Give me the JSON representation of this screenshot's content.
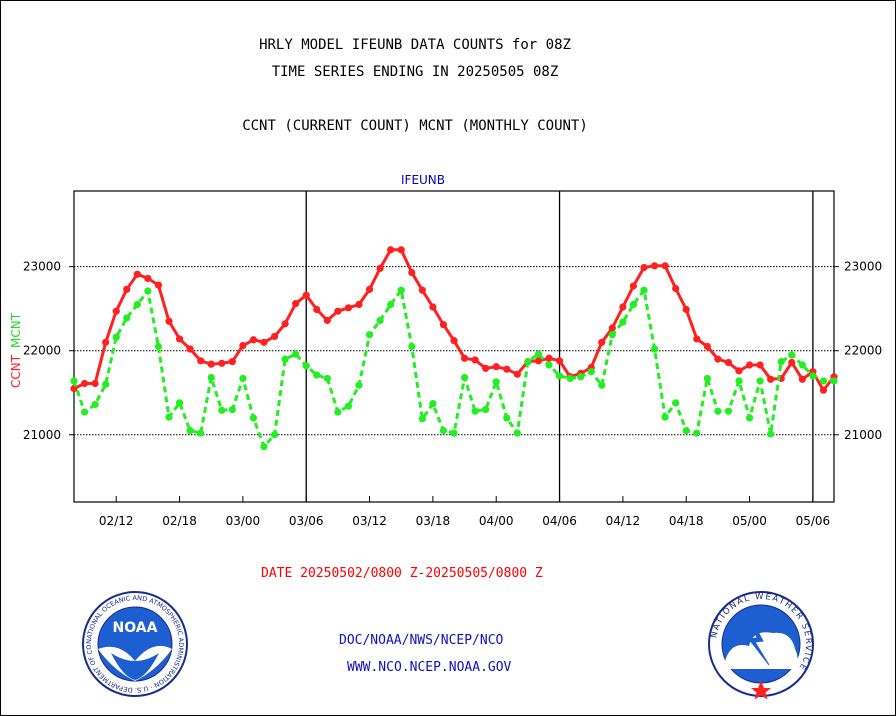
{
  "header": {
    "title_line1": "HRLY MODEL IFEUNB DATA COUNTS for 08Z",
    "title_line2": "TIME SERIES ENDING IN 20250505 08Z",
    "subtitle": "CCNT (CURRENT COUNT) MCNT (MONTHLY COUNT)",
    "plot_label": "IFEUNB"
  },
  "footer": {
    "date_range": "DATE 20250502/0800 Z-20250505/0800 Z",
    "org": "DOC/NOAA/NWS/NCEP/NCO",
    "url": "WWW.NCO.NCEP.NOAA.GOV"
  },
  "logos": {
    "noaa_text": "NOAA",
    "noaa_ring": "NATIONAL OCEANIC AND ATMOSPHERIC ADMINISTRATION · U.S. DEPARTMENT OF COMMERCE",
    "nws_ring": "NATIONAL WEATHER SERVICE"
  },
  "colors": {
    "ccnt": "#ff2020",
    "mcnt": "#22ee22",
    "axis": "#000000",
    "blue_text": "#1010c0"
  },
  "chart_data": {
    "type": "line",
    "ylabel_ccnt": "CCNT",
    "ylabel_mcnt": "MCNT",
    "ylim": [
      20200,
      23900
    ],
    "yticks": [
      21000,
      22000,
      23000
    ],
    "ytick_labels": [
      "21000",
      "22000",
      "23000"
    ],
    "x_count": 73,
    "xticks": [
      {
        "label": "02/12",
        "x": 4
      },
      {
        "label": "02/18",
        "x": 10
      },
      {
        "label": "03/00",
        "x": 16
      },
      {
        "label": "03/06",
        "x": 22
      },
      {
        "label": "03/12",
        "x": 28
      },
      {
        "label": "03/18",
        "x": 34
      },
      {
        "label": "04/00",
        "x": 40
      },
      {
        "label": "04/06",
        "x": 46
      },
      {
        "label": "04/12",
        "x": 52
      },
      {
        "label": "04/18",
        "x": 58
      },
      {
        "label": "05/00",
        "x": 64
      },
      {
        "label": "05/06",
        "x": 70
      }
    ],
    "day_boundaries": [
      22,
      46,
      70
    ],
    "grid": "horizontal dotted",
    "series": [
      {
        "name": "CCNT",
        "color": "#ff2020",
        "values": [
          21550,
          21610,
          21610,
          22100,
          22470,
          22730,
          22910,
          22860,
          22780,
          22350,
          22140,
          22020,
          21880,
          21840,
          21850,
          21870,
          22060,
          22130,
          22100,
          22170,
          22320,
          22560,
          22660,
          22490,
          22360,
          22470,
          22510,
          22550,
          22730,
          22980,
          23200,
          23200,
          22930,
          22720,
          22520,
          22310,
          22120,
          21910,
          21890,
          21790,
          21810,
          21780,
          21720,
          21870,
          21880,
          21910,
          21880,
          21690,
          21730,
          21800,
          22100,
          22270,
          22520,
          22770,
          22990,
          23010,
          23010,
          22740,
          22490,
          22140,
          22050,
          21900,
          21860,
          21760,
          21830,
          21830,
          21660,
          21670,
          21860,
          21660,
          21750,
          21530,
          21690
        ]
      },
      {
        "name": "MCNT",
        "color": "#22ee22",
        "values": [
          21640,
          21270,
          21360,
          21600,
          22160,
          22390,
          22550,
          22710,
          22050,
          21210,
          21380,
          21050,
          21020,
          21680,
          21290,
          21300,
          21670,
          21200,
          20860,
          21000,
          21900,
          21960,
          21820,
          21710,
          21670,
          21270,
          21340,
          21590,
          22190,
          22360,
          22550,
          22720,
          22050,
          21190,
          21370,
          21050,
          21020,
          21680,
          21280,
          21300,
          21630,
          21200,
          21020,
          21870,
          21960,
          21830,
          21700,
          21670,
          21690,
          21750,
          21590,
          22190,
          22340,
          22550,
          22720,
          22020,
          21210,
          21380,
          21050,
          21020,
          21670,
          21280,
          21280,
          21640,
          21200,
          21640,
          21010,
          21870,
          21950,
          21830,
          21700,
          21640,
          21640
        ]
      }
    ]
  }
}
